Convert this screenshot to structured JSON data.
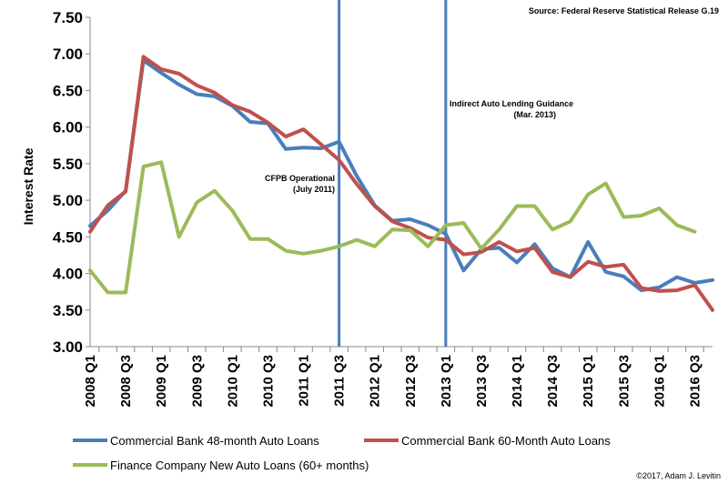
{
  "chart_data": {
    "type": "line",
    "ylabel": "Interest Rate",
    "ylim": [
      3.0,
      7.5
    ],
    "yticks": [
      "3.00",
      "3.50",
      "4.00",
      "4.50",
      "5.00",
      "5.50",
      "6.00",
      "6.50",
      "7.00",
      "7.50"
    ],
    "x_labels": [
      "2008 Q1",
      "2008 Q3",
      "2009 Q1",
      "2009 Q3",
      "2010 Q1",
      "2010 Q3",
      "2011 Q1",
      "2011 Q3",
      "2012 Q1",
      "2012 Q3",
      "2013 Q1",
      "2013 Q3",
      "2014 Q1",
      "2014 Q3",
      "2015 Q1",
      "2015 Q3",
      "2016 Q1",
      "2016 Q3"
    ],
    "source": "Source: Federal Reserve Statistical Release G.19",
    "copyright": "©2017, Adam J. Levitin",
    "grid": false,
    "series": [
      {
        "name": "Commercial Bank 48-month Auto Loans",
        "color": "#4a7ebb",
        "values": [
          4.65,
          4.86,
          5.13,
          6.91,
          6.74,
          6.58,
          6.45,
          6.42,
          6.29,
          6.07,
          6.05,
          5.7,
          5.72,
          5.71,
          5.8,
          5.33,
          4.93,
          4.72,
          4.74,
          4.66,
          4.54,
          4.04,
          4.33,
          4.35,
          4.15,
          4.4,
          4.07,
          3.95,
          4.43,
          4.02,
          3.96,
          3.77,
          3.81,
          3.95,
          3.87,
          3.91
        ]
      },
      {
        "name": "Commercial Bank 60-Month Auto Loans",
        "color": "#c0504d",
        "values": [
          4.57,
          4.93,
          5.12,
          6.96,
          6.79,
          6.73,
          6.57,
          6.47,
          6.3,
          6.21,
          6.06,
          5.87,
          5.97,
          5.76,
          5.55,
          5.22,
          4.92,
          4.71,
          4.62,
          4.49,
          4.46,
          4.26,
          4.29,
          4.43,
          4.3,
          4.35,
          4.02,
          3.95,
          4.16,
          4.09,
          4.12,
          3.8,
          3.76,
          3.77,
          3.84,
          3.5
        ]
      },
      {
        "name": "Finance Company New Auto Loans (60+ months)",
        "color": "#9bbb59",
        "values": [
          4.04,
          3.74,
          3.74,
          5.46,
          5.52,
          4.5,
          4.97,
          5.13,
          4.86,
          4.47,
          4.47,
          4.31,
          4.27,
          4.31,
          4.37,
          4.46,
          4.37,
          4.6,
          4.59,
          4.37,
          4.66,
          4.69,
          4.34,
          4.6,
          4.92,
          4.92,
          4.6,
          4.71,
          5.08,
          5.23,
          4.77,
          4.79,
          4.89,
          4.66,
          4.57
        ]
      }
    ],
    "annotations": [
      {
        "label": "CFPB Operational",
        "sublabel": "(July 2011)",
        "at_quarter": "2011 Q3"
      },
      {
        "label": "Indirect Auto Lending Guidance",
        "sublabel": "(Mar. 2013)",
        "at_quarter": "2013 Q1"
      }
    ]
  }
}
